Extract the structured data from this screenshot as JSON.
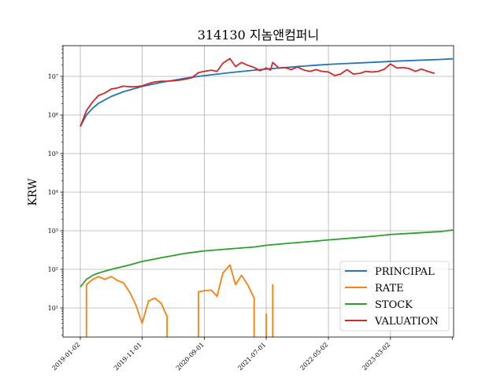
{
  "chart_data": {
    "type": "line",
    "title": "314130 지놈앤컴퍼니",
    "xlabel": "",
    "ylabel": "KRW",
    "yscale": "log",
    "ylim": [
      2,
      50000000
    ],
    "grid": true,
    "legend_position": "lower-right",
    "x_tick_labels": [
      "2019-01-02",
      "2019-11-01",
      "2020-09-01",
      "2021-07-01",
      "2022-05-02",
      "2023-03-02"
    ],
    "y_tick_labels": [
      "10¹",
      "10²",
      "10³",
      "10⁴",
      "10⁵",
      "10⁶",
      "10⁷"
    ],
    "series": [
      {
        "name": "PRINCIPAL",
        "color": "#1f77b4",
        "points": [
          [
            "2019-01-02",
            500000
          ],
          [
            "2019-02-01",
            1000000
          ],
          [
            "2019-03-04",
            1500000
          ],
          [
            "2019-04-01",
            2000000
          ],
          [
            "2019-06-01",
            3000000
          ],
          [
            "2019-08-01",
            4000000
          ],
          [
            "2019-11-01",
            5500000
          ],
          [
            "2020-02-03",
            7000000
          ],
          [
            "2020-06-01",
            9000000
          ],
          [
            "2020-09-01",
            10500000
          ],
          [
            "2021-01-04",
            12500000
          ],
          [
            "2021-05-03",
            14500000
          ],
          [
            "2021-07-01",
            15500000
          ],
          [
            "2021-11-01",
            17500000
          ],
          [
            "2022-03-02",
            19500000
          ],
          [
            "2022-05-02",
            20500000
          ],
          [
            "2022-09-01",
            22000000
          ],
          [
            "2023-01-02",
            23500000
          ],
          [
            "2023-03-02",
            24500000
          ],
          [
            "2023-07-03",
            26000000
          ],
          [
            "2023-11-01",
            27500000
          ],
          [
            "2024-01-02",
            28500000
          ]
        ]
      },
      {
        "name": "RATE",
        "color": "#ff7f0e",
        "segments": [
          [
            [
              "2019-02-01",
              0.1
            ],
            [
              "2019-02-01",
              40
            ],
            [
              "2019-03-04",
              55
            ],
            [
              "2019-04-01",
              65
            ],
            [
              "2019-05-02",
              55
            ],
            [
              "2019-06-03",
              65
            ],
            [
              "2019-07-01",
              52
            ],
            [
              "2019-08-01",
              45
            ],
            [
              "2019-09-02",
              25
            ],
            [
              "2019-10-01",
              12
            ],
            [
              "2019-11-01",
              4
            ],
            [
              "2019-12-02",
              15
            ],
            [
              "2020-01-02",
              18
            ],
            [
              "2020-02-03",
              13
            ],
            [
              "2020-03-02",
              6
            ],
            [
              "2020-03-02",
              0.1
            ]
          ],
          [
            [
              "2020-08-03",
              0.1
            ],
            [
              "2020-08-03",
              26
            ],
            [
              "2020-09-01",
              28
            ],
            [
              "2020-10-05",
              29
            ],
            [
              "2020-11-02",
              20
            ],
            [
              "2020-12-01",
              80
            ],
            [
              "2021-01-04",
              130
            ],
            [
              "2021-02-01",
              40
            ],
            [
              "2021-03-02",
              70
            ],
            [
              "2021-04-01",
              40
            ],
            [
              "2021-05-03",
              18
            ],
            [
              "2021-05-03",
              0.1
            ]
          ],
          [
            [
              "2021-07-01",
              0.1
            ],
            [
              "2021-07-01",
              7
            ],
            [
              "2021-07-01",
              0.1
            ]
          ],
          [
            [
              "2021-08-02",
              0.1
            ],
            [
              "2021-08-02",
              40
            ],
            [
              "2021-08-02",
              0.1
            ]
          ]
        ]
      },
      {
        "name": "STOCK",
        "color": "#2ca02c",
        "points": [
          [
            "2019-01-02",
            35
          ],
          [
            "2019-02-01",
            55
          ],
          [
            "2019-03-04",
            70
          ],
          [
            "2019-04-01",
            80
          ],
          [
            "2019-06-03",
            100
          ],
          [
            "2019-09-02",
            130
          ],
          [
            "2019-11-01",
            160
          ],
          [
            "2020-02-03",
            200
          ],
          [
            "2020-06-01",
            260
          ],
          [
            "2020-09-01",
            300
          ],
          [
            "2021-01-04",
            340
          ],
          [
            "2021-05-03",
            380
          ],
          [
            "2021-07-01",
            420
          ],
          [
            "2021-11-01",
            480
          ],
          [
            "2022-03-02",
            540
          ],
          [
            "2022-05-02",
            580
          ],
          [
            "2022-09-01",
            650
          ],
          [
            "2023-01-02",
            740
          ],
          [
            "2023-03-02",
            800
          ],
          [
            "2023-07-03",
            870
          ],
          [
            "2023-11-01",
            950
          ],
          [
            "2024-01-02",
            1050
          ]
        ]
      },
      {
        "name": "VALUATION",
        "color": "#d62728",
        "points": [
          [
            "2019-01-02",
            500000
          ],
          [
            "2019-02-01",
            1300000
          ],
          [
            "2019-03-04",
            2200000
          ],
          [
            "2019-04-01",
            3200000
          ],
          [
            "2019-05-02",
            3700000
          ],
          [
            "2019-06-03",
            4700000
          ],
          [
            "2019-07-01",
            5000000
          ],
          [
            "2019-08-01",
            5600000
          ],
          [
            "2019-09-02",
            5400000
          ],
          [
            "2019-10-01",
            5400000
          ],
          [
            "2019-11-01",
            5700000
          ],
          [
            "2019-12-02",
            6500000
          ],
          [
            "2020-01-02",
            7200000
          ],
          [
            "2020-02-03",
            7500000
          ],
          [
            "2020-03-02",
            7500000
          ],
          [
            "2020-04-01",
            7700000
          ],
          [
            "2020-05-04",
            8000000
          ],
          [
            "2020-06-01",
            8500000
          ],
          [
            "2020-07-01",
            9200000
          ],
          [
            "2020-08-03",
            12500000
          ],
          [
            "2020-09-01",
            13500000
          ],
          [
            "2020-10-05",
            14500000
          ],
          [
            "2020-11-02",
            13500000
          ],
          [
            "2020-12-01",
            22000000
          ],
          [
            "2021-01-04",
            29000000
          ],
          [
            "2021-02-01",
            18000000
          ],
          [
            "2021-03-02",
            23000000
          ],
          [
            "2021-04-01",
            19500000
          ],
          [
            "2021-05-03",
            17000000
          ],
          [
            "2021-06-01",
            14000000
          ],
          [
            "2021-07-01",
            16500000
          ],
          [
            "2021-07-22",
            14500000
          ],
          [
            "2021-08-02",
            23000000
          ],
          [
            "2021-09-01",
            16500000
          ],
          [
            "2021-10-01",
            17000000
          ],
          [
            "2021-11-01",
            15000000
          ],
          [
            "2021-12-01",
            17500000
          ],
          [
            "2022-01-03",
            14500000
          ],
          [
            "2022-02-03",
            13500000
          ],
          [
            "2022-03-02",
            15000000
          ],
          [
            "2022-04-01",
            13500000
          ],
          [
            "2022-05-02",
            13000000
          ],
          [
            "2022-06-02",
            10500000
          ],
          [
            "2022-07-01",
            11500000
          ],
          [
            "2022-08-01",
            15000000
          ],
          [
            "2022-09-01",
            11500000
          ],
          [
            "2022-10-04",
            12000000
          ],
          [
            "2022-11-01",
            13500000
          ],
          [
            "2022-12-01",
            13000000
          ],
          [
            "2023-01-02",
            13500000
          ],
          [
            "2023-02-01",
            15500000
          ],
          [
            "2023-03-02",
            21000000
          ],
          [
            "2023-04-03",
            16500000
          ],
          [
            "2023-05-02",
            17000000
          ],
          [
            "2023-06-01",
            16000000
          ],
          [
            "2023-07-03",
            13500000
          ],
          [
            "2023-08-01",
            15500000
          ],
          [
            "2023-09-01",
            13500000
          ],
          [
            "2023-10-04",
            12000000
          ]
        ]
      }
    ]
  }
}
